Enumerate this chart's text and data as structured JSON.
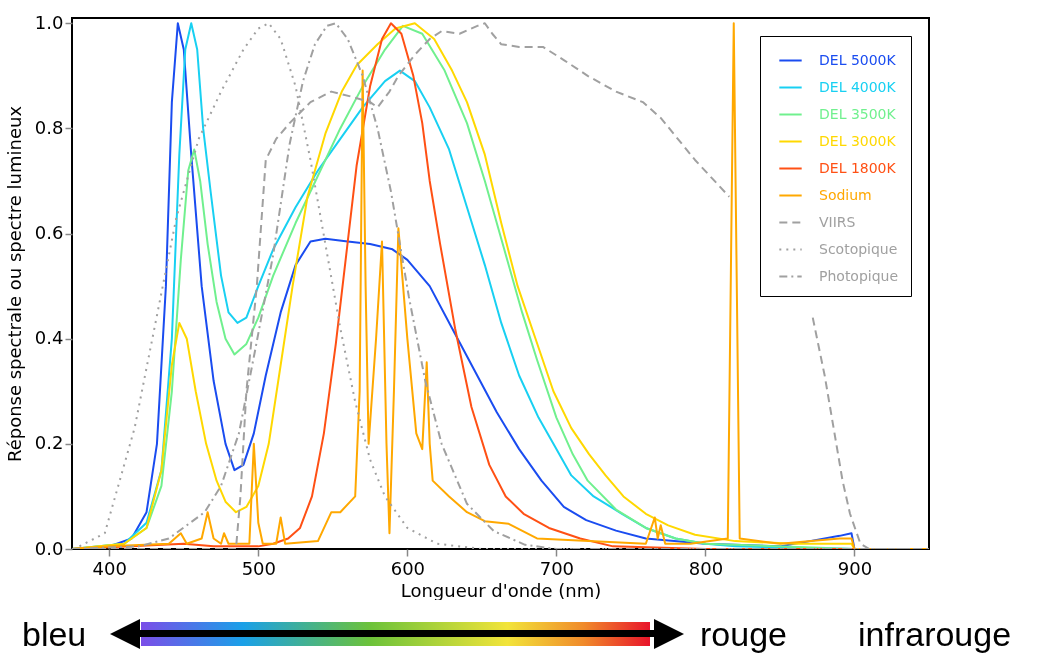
{
  "chart_data": {
    "type": "line",
    "xlabel": "Longueur d'onde (nm)",
    "ylabel": "Réponse spectrale ou spectre lumineux",
    "xlim": [
      375,
      950
    ],
    "xticks": [
      400,
      500,
      600,
      700,
      800,
      900
    ],
    "ylim": [
      0,
      1.01
    ],
    "yticks": [
      {
        "value": 0,
        "label": "0.0"
      },
      0.2,
      0.4,
      0.6,
      0.8,
      {
        "value": 1,
        "label": "1.0"
      }
    ],
    "grid": false,
    "legend": "top right",
    "annotations": [
      "bleu",
      "rouge",
      "infrarouge"
    ],
    "series": [
      {
        "name": "DEL 5000K",
        "color": "#1a4cf0",
        "line_style": "solid",
        "x": [
          375,
          400,
          415,
          425,
          432,
          438,
          442,
          446,
          450,
          455,
          462,
          470,
          478,
          484,
          490,
          497,
          505,
          515,
          525,
          535,
          545,
          560,
          575,
          590,
          600,
          615,
          630,
          645,
          660,
          675,
          690,
          705,
          720,
          740,
          760,
          800,
          850,
          870,
          890,
          898,
          900,
          950
        ],
        "values": [
          0,
          0.005,
          0.02,
          0.07,
          0.2,
          0.5,
          0.85,
          1.0,
          0.95,
          0.75,
          0.5,
          0.32,
          0.2,
          0.15,
          0.16,
          0.22,
          0.33,
          0.45,
          0.54,
          0.585,
          0.59,
          0.585,
          0.58,
          0.57,
          0.55,
          0.5,
          0.42,
          0.34,
          0.26,
          0.19,
          0.13,
          0.08,
          0.055,
          0.035,
          0.02,
          0.01,
          0.005,
          0.015,
          0.025,
          0.03,
          0,
          0
        ]
      },
      {
        "name": "DEL 4000K",
        "color": "#18d0f2",
        "line_style": "solid",
        "x": [
          375,
          410,
          425,
          435,
          442,
          447,
          451,
          455,
          459,
          463,
          468,
          475,
          480,
          486,
          492,
          500,
          510,
          525,
          540,
          555,
          570,
          585,
          595,
          605,
          615,
          628,
          640,
          652,
          663,
          675,
          688,
          698,
          710,
          725,
          744,
          760,
          780,
          800,
          820,
          900,
          950
        ],
        "values": [
          0,
          0.01,
          0.05,
          0.15,
          0.4,
          0.75,
          0.95,
          1.0,
          0.95,
          0.8,
          0.68,
          0.52,
          0.45,
          0.43,
          0.44,
          0.5,
          0.57,
          0.65,
          0.72,
          0.78,
          0.84,
          0.89,
          0.91,
          0.89,
          0.84,
          0.76,
          0.65,
          0.54,
          0.43,
          0.33,
          0.25,
          0.2,
          0.14,
          0.1,
          0.067,
          0.04,
          0.02,
          0.01,
          0.005,
          0,
          0
        ]
      },
      {
        "name": "DEL 3500K",
        "color": "#70f08e",
        "line_style": "solid",
        "x": [
          375,
          410,
          425,
          435,
          442,
          448,
          453,
          457,
          461,
          466,
          472,
          478,
          484,
          492,
          500,
          510,
          525,
          540,
          555,
          570,
          585,
          597,
          610,
          625,
          640,
          652,
          665,
          677,
          687,
          700,
          711,
          721,
          740,
          760,
          780,
          800,
          900,
          950
        ],
        "values": [
          0,
          0.01,
          0.04,
          0.12,
          0.3,
          0.55,
          0.72,
          0.76,
          0.7,
          0.58,
          0.47,
          0.4,
          0.37,
          0.39,
          0.44,
          0.52,
          0.62,
          0.71,
          0.8,
          0.88,
          0.95,
          0.995,
          0.98,
          0.91,
          0.81,
          0.7,
          0.57,
          0.45,
          0.36,
          0.25,
          0.18,
          0.13,
          0.075,
          0.04,
          0.02,
          0.01,
          0,
          0
        ]
      },
      {
        "name": "DEL 3000K",
        "color": "#ffd800",
        "line_style": "solid",
        "x": [
          375,
          410,
          425,
          435,
          442,
          447,
          452,
          458,
          465,
          472,
          478,
          485,
          492,
          500,
          507,
          515,
          523,
          533,
          545,
          556,
          566,
          580,
          592,
          605,
          618,
          630,
          640,
          652,
          663,
          674,
          686,
          698,
          710,
          722,
          733,
          745,
          760,
          775,
          793,
          820,
          860,
          898,
          900,
          950
        ],
        "values": [
          0,
          0.01,
          0.04,
          0.15,
          0.35,
          0.43,
          0.4,
          0.3,
          0.2,
          0.13,
          0.09,
          0.07,
          0.08,
          0.12,
          0.2,
          0.35,
          0.5,
          0.67,
          0.79,
          0.87,
          0.92,
          0.96,
          0.99,
          1.0,
          0.97,
          0.91,
          0.85,
          0.75,
          0.62,
          0.5,
          0.4,
          0.3,
          0.23,
          0.18,
          0.14,
          0.1,
          0.067,
          0.045,
          0.027,
          0.015,
          0.01,
          0.01,
          0,
          0
        ]
      },
      {
        "name": "DEL 1800K",
        "color": "#ff5014",
        "line_style": "solid",
        "x": [
          375,
          450,
          470,
          500,
          510,
          520,
          528,
          536,
          544,
          552,
          559,
          566,
          575,
          583,
          589,
          596,
          604,
          610,
          615,
          622,
          632,
          643,
          655,
          666,
          678,
          695,
          716,
          738,
          800,
          950
        ],
        "values": [
          0,
          0.01,
          0.005,
          0.005,
          0.01,
          0.02,
          0.04,
          0.1,
          0.22,
          0.39,
          0.56,
          0.73,
          0.88,
          0.97,
          1.0,
          0.98,
          0.9,
          0.81,
          0.7,
          0.58,
          0.42,
          0.27,
          0.16,
          0.1,
          0.067,
          0.04,
          0.02,
          0.005,
          0,
          0
        ]
      },
      {
        "name": "Sodium",
        "color": "#ffa800",
        "line_style": "solid",
        "x": [
          375,
          400,
          440,
          448,
          452,
          462,
          466,
          470,
          475,
          477,
          480,
          494,
          497,
          500,
          503,
          512,
          515,
          518,
          540,
          549,
          555,
          565,
          568,
          570,
          572,
          574,
          579,
          583,
          586,
          588,
          591,
          594,
          600,
          606,
          610,
          613,
          615,
          617,
          628,
          640,
          652,
          668,
          687,
          760,
          766,
          768,
          770,
          773,
          790,
          815,
          819,
          823,
          850,
          890,
          898,
          900,
          950
        ],
        "values": [
          0,
          0.005,
          0.01,
          0.03,
          0.01,
          0.02,
          0.07,
          0.02,
          0.01,
          0.03,
          0.01,
          0.01,
          0.2,
          0.05,
          0.01,
          0.01,
          0.06,
          0.01,
          0.015,
          0.07,
          0.07,
          0.1,
          0.3,
          0.91,
          0.5,
          0.2,
          0.4,
          0.585,
          0.2,
          0.03,
          0.3,
          0.61,
          0.4,
          0.22,
          0.19,
          0.355,
          0.2,
          0.13,
          0.1,
          0.07,
          0.053,
          0.048,
          0.02,
          0.01,
          0.06,
          0.02,
          0.045,
          0.01,
          0.01,
          0.02,
          1.0,
          0.02,
          0.01,
          0.02,
          0.02,
          0,
          0
        ]
      },
      {
        "name": "VIIRS",
        "color": "#a0a0a0",
        "line_style": "dashed",
        "x": [
          375,
          485,
          488,
          492,
          499,
          505,
          512,
          521,
          535,
          549,
          563,
          575,
          580,
          588,
          594,
          605,
          615,
          623,
          635,
          647,
          652,
          657,
          663,
          675,
          691,
          705,
          721,
          740,
          758,
          770,
          793,
          816,
          835,
          851,
          872,
          880,
          886,
          892,
          897,
          904,
          910,
          950
        ],
        "values": [
          0,
          0,
          0.1,
          0.3,
          0.5,
          0.74,
          0.78,
          0.81,
          0.85,
          0.87,
          0.86,
          0.85,
          0.84,
          0.87,
          0.9,
          0.94,
          0.97,
          0.985,
          0.98,
          0.995,
          1.0,
          0.98,
          0.96,
          0.955,
          0.955,
          0.93,
          0.9,
          0.87,
          0.85,
          0.82,
          0.74,
          0.67,
          null,
          null,
          0.44,
          0.33,
          0.23,
          0.13,
          0.067,
          0.01,
          0,
          0
        ]
      },
      {
        "name": "Scotopique",
        "color": "#a0a0a0",
        "line_style": "dotted",
        "x": [
          380,
          397,
          417,
          431,
          445,
          460,
          475,
          490,
          500,
          507,
          515,
          525,
          535,
          545,
          555,
          565,
          575,
          585,
          600,
          620,
          650,
          950
        ],
        "values": [
          0.005,
          0.03,
          0.23,
          0.43,
          0.63,
          0.78,
          0.87,
          0.95,
          0.99,
          1.0,
          0.97,
          0.88,
          0.74,
          0.58,
          0.42,
          0.28,
          0.17,
          0.1,
          0.04,
          0.01,
          0,
          0
        ]
      },
      {
        "name": "Photopique",
        "color": "#a0a0a0",
        "line_style": "dashdot",
        "x": [
          375,
          420,
          440,
          464,
          475,
          487,
          498,
          510,
          521,
          530,
          538,
          546,
          552,
          560,
          570,
          580,
          589,
          601,
          612,
          623,
          640,
          658,
          679,
          700,
          950
        ],
        "values": [
          0,
          0.005,
          0.02,
          0.07,
          0.12,
          0.22,
          0.38,
          0.56,
          0.77,
          0.89,
          0.96,
          0.995,
          1.0,
          0.97,
          0.9,
          0.8,
          0.68,
          0.48,
          0.32,
          0.2,
          0.086,
          0.034,
          0.008,
          0,
          0
        ]
      }
    ]
  }
}
